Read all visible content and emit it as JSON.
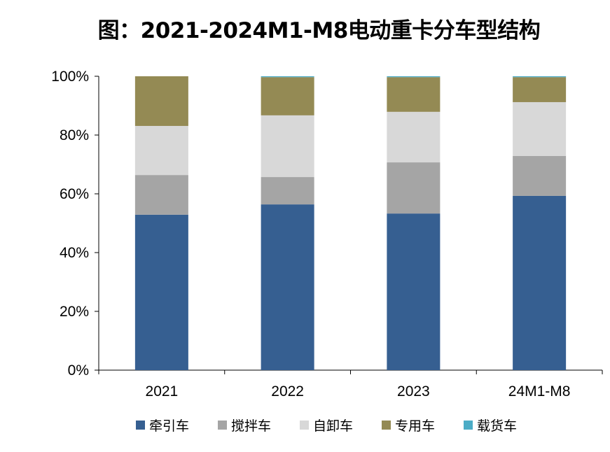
{
  "chart_data": {
    "type": "bar",
    "stacked": true,
    "title": "图：2021-2024M1-M8电动重卡分车型结构",
    "categories": [
      "2021",
      "2022",
      "2023",
      "24M1-M8"
    ],
    "series": [
      {
        "name": "牵引车",
        "color": "#365F91",
        "values": [
          52.9,
          56.4,
          53.3,
          59.3
        ]
      },
      {
        "name": "搅拌车",
        "color": "#A5A5A5",
        "values": [
          13.5,
          9.3,
          17.4,
          13.6
        ]
      },
      {
        "name": "自卸车",
        "color": "#D8D8D8",
        "values": [
          16.7,
          21.0,
          17.2,
          18.3
        ]
      },
      {
        "name": "专用车",
        "color": "#948A54",
        "values": [
          16.9,
          13.0,
          11.8,
          8.5
        ]
      },
      {
        "name": "载货车",
        "color": "#4BACC6",
        "values": [
          0,
          0.3,
          0.3,
          0.3
        ]
      }
    ],
    "ylim": [
      0,
      100
    ],
    "yticks": [
      "0%",
      "20%",
      "40%",
      "60%",
      "80%",
      "100%"
    ],
    "grid": false,
    "legend": "bottom"
  }
}
